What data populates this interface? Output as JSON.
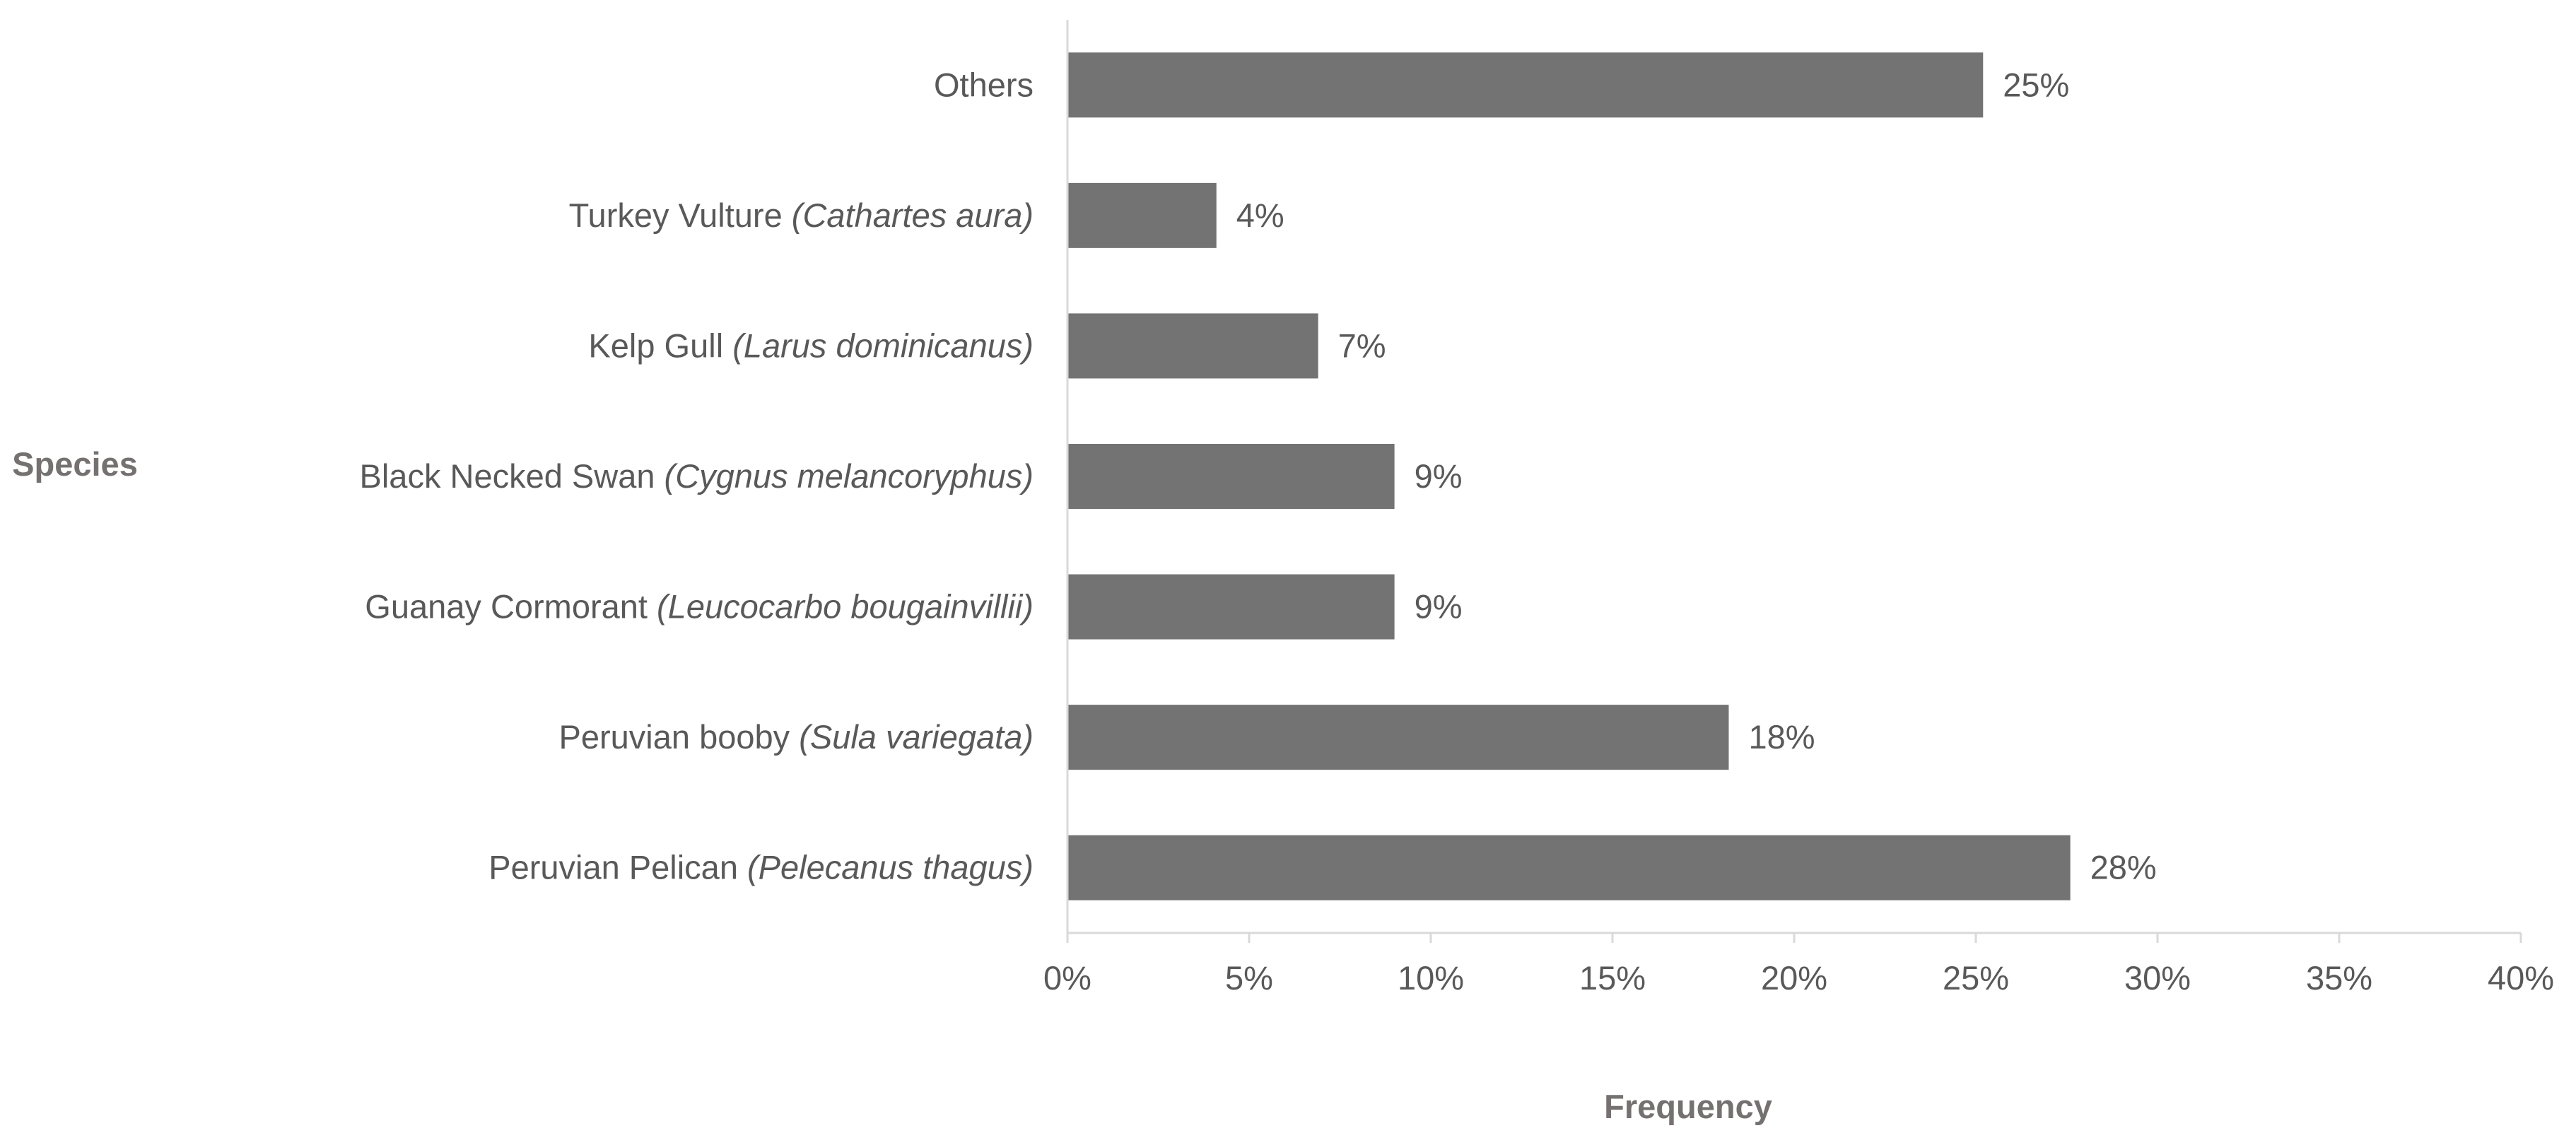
{
  "chart_data": {
    "type": "bar",
    "orientation": "horizontal",
    "xlabel": "Frequency",
    "ylabel": "Species",
    "xlim": [
      0,
      40
    ],
    "x_ticks": [
      "0%",
      "5%",
      "10%",
      "15%",
      "20%",
      "25%",
      "30%",
      "35%",
      "40%"
    ],
    "grid": false,
    "legend": "none",
    "bar_color": "#737373",
    "categories": [
      {
        "common": "Peruvian Pelican",
        "scientific": "(Pelecanus thagus)"
      },
      {
        "common": "Peruvian booby",
        "scientific": "(Sula variegata)"
      },
      {
        "common": "Guanay Cormorant",
        "scientific": "(Leucocarbo bougainvillii)"
      },
      {
        "common": "Black Necked Swan",
        "scientific": "(Cygnus melancoryphus)"
      },
      {
        "common": "Kelp Gull",
        "scientific": "(Larus dominicanus)"
      },
      {
        "common": "Turkey Vulture",
        "scientific": "(Cathartes aura)"
      },
      {
        "common": "Others",
        "scientific": ""
      }
    ],
    "values": [
      27.6,
      18.2,
      9.0,
      9.0,
      6.9,
      4.1,
      25.2
    ],
    "data_labels": [
      "28%",
      "18%",
      "9%",
      "9%",
      "7%",
      "4%",
      "25%"
    ]
  }
}
